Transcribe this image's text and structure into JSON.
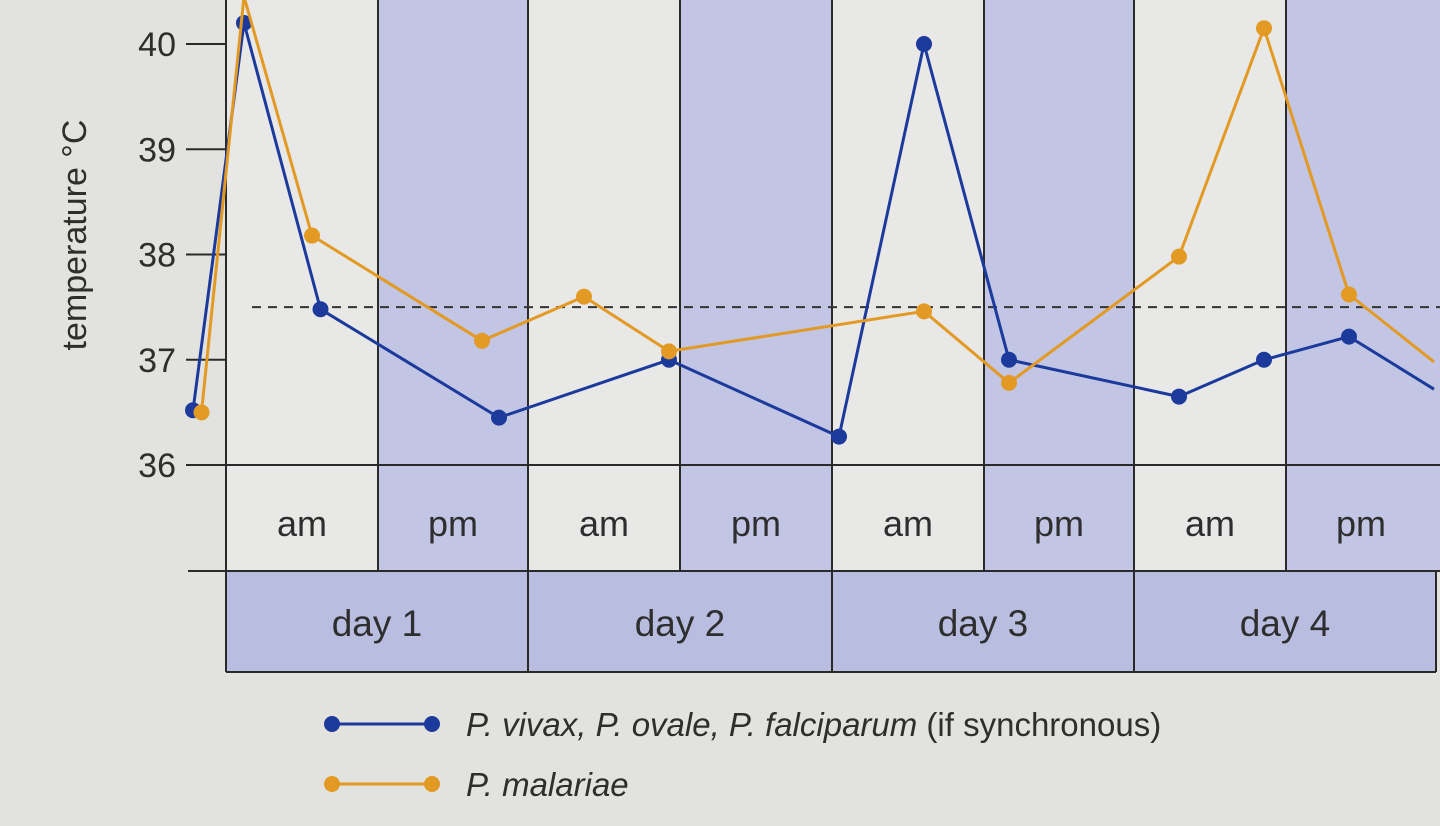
{
  "chart_data": {
    "type": "line",
    "ylabel": "temperature °C",
    "ylim": [
      36,
      40.4
    ],
    "yticks": [
      36,
      37,
      38,
      39,
      40
    ],
    "threshold": 37.5,
    "halves": [
      "am",
      "pm",
      "am",
      "pm",
      "am",
      "pm",
      "am",
      "pm"
    ],
    "days": [
      "day 1",
      "day 2",
      "day 3",
      "day 4"
    ],
    "x_range": [
      0,
      8
    ],
    "colors": {
      "vivax": "#1c3a9c",
      "malariae": "#e39a24",
      "band_light": "#e8e8e6",
      "band_dark": "#c2c5e4",
      "day_band": "#b9bde0",
      "grid": "#2a2a2a"
    },
    "series": [
      {
        "key": "vivax",
        "legend_parts": [
          {
            "text": "P. vivax, P. ovale, P. falciparum",
            "italic": true
          },
          {
            "text": " (if synchronous)",
            "italic": false
          }
        ],
        "points": [
          [
            0.7,
            36.52
          ],
          [
            1.0,
            40.2
          ],
          [
            1.45,
            37.48
          ],
          [
            2.5,
            36.45
          ],
          [
            3.5,
            37.0
          ],
          [
            4.5,
            36.27
          ],
          [
            5.0,
            40.0
          ],
          [
            5.5,
            37.0
          ],
          [
            6.5,
            36.65
          ],
          [
            7.0,
            37.0
          ],
          [
            7.5,
            37.22
          ],
          [
            8.0,
            36.72
          ]
        ],
        "markers": [
          0,
          1,
          2,
          3,
          4,
          5,
          6,
          7,
          8,
          9,
          10
        ]
      },
      {
        "key": "malariae",
        "legend_parts": [
          {
            "text": "P. malariae",
            "italic": true
          }
        ],
        "points": [
          [
            0.75,
            36.5
          ],
          [
            1.0,
            40.45
          ],
          [
            1.4,
            38.18
          ],
          [
            2.4,
            37.18
          ],
          [
            3.0,
            37.6
          ],
          [
            3.5,
            37.08
          ],
          [
            5.0,
            37.46
          ],
          [
            5.5,
            36.78
          ],
          [
            6.5,
            37.98
          ],
          [
            7.0,
            40.15
          ],
          [
            7.5,
            37.62
          ],
          [
            8.0,
            36.98
          ]
        ],
        "markers": [
          0,
          2,
          3,
          4,
          5,
          6,
          7,
          8,
          9,
          10
        ]
      }
    ]
  }
}
